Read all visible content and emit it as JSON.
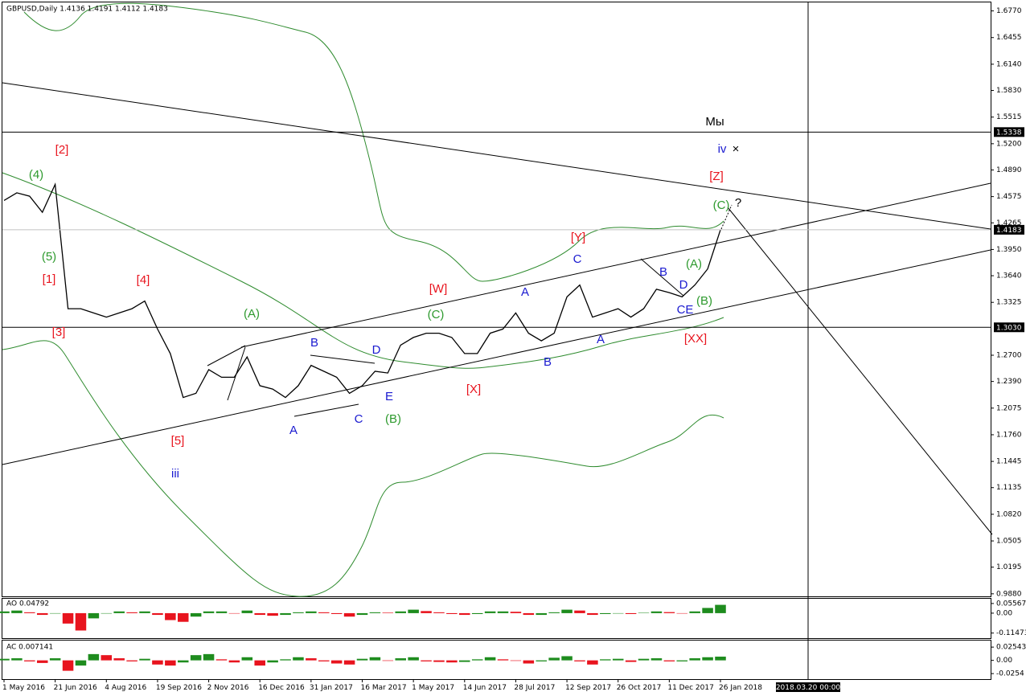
{
  "chart_data": [
    {
      "type": "line",
      "title": "GBPUSD,Daily  1.4136 1.4191 1.4112 1.4183",
      "color": "#000000",
      "categories": [
        "1 May 2016",
        null,
        null,
        null,
        "21 Jun 2016",
        null,
        null,
        null,
        "4 Aug 2016",
        null,
        null,
        null,
        "19 Sep 2016",
        null,
        null,
        null,
        "2 Nov 2016",
        null,
        null,
        null,
        "16 Dec 2016",
        null,
        null,
        null,
        "31 Jan 2017",
        null,
        null,
        null,
        "16 Mar 2017",
        null,
        null,
        null,
        "1 May 2017",
        null,
        null,
        null,
        "14 Jun 2017",
        null,
        null,
        null,
        "28 Jul 2017",
        null,
        null,
        null,
        "12 Sep 2017",
        null,
        null,
        null,
        "26 Oct 2017",
        null,
        null,
        null,
        "11 Dec 2017",
        null,
        null,
        null,
        "26 Jan 2018"
      ],
      "values": [
        1.453,
        1.462,
        1.458,
        1.439,
        1.472,
        1.325,
        1.325,
        1.32,
        1.315,
        1.32,
        1.325,
        1.334,
        1.301,
        1.272,
        1.22,
        1.225,
        1.253,
        1.244,
        1.244,
        1.268,
        1.234,
        1.23,
        1.22,
        1.234,
        1.258,
        1.251,
        1.244,
        1.225,
        1.234,
        1.251,
        1.249,
        1.282,
        1.291,
        1.296,
        1.296,
        1.291,
        1.272,
        1.272,
        1.296,
        1.301,
        1.32,
        1.296,
        1.287,
        1.296,
        1.339,
        1.353,
        1.315,
        1.32,
        1.325,
        1.315,
        1.325,
        1.348,
        1.344,
        1.339,
        1.353,
        1.372,
        1.4183
      ],
      "ylim": [
        0.985,
        1.688
      ],
      "yticks": [
        {
          "value": 1.677,
          "label": "1.6770"
        },
        1.6455,
        {
          "value": 1.614,
          "label": "1.6140"
        },
        {
          "value": 1.583,
          "label": "1.5830"
        },
        1.5515,
        {
          "value": 1.52,
          "label": "1.5200"
        },
        {
          "value": 1.489,
          "label": "1.4890"
        },
        1.4575,
        1.4265,
        {
          "value": 1.395,
          "label": "1.3950"
        },
        {
          "value": 1.364,
          "label": "1.3640"
        },
        1.3325,
        {
          "value": 1.27,
          "label": "1.2700"
        },
        {
          "value": 1.239,
          "label": "1.2390"
        },
        1.2075,
        {
          "value": 1.176,
          "label": "1.1760"
        },
        1.1445,
        1.1135,
        {
          "value": 1.082,
          "label": "1.0820"
        },
        1.0505,
        1.0195,
        {
          "value": 0.988,
          "label": "0.9880"
        }
      ],
      "levels": [
        {
          "value": 1.5338,
          "label": "1.5338",
          "color": "#000000"
        },
        {
          "value": 1.4183,
          "label": "1.4183",
          "color": "#c0c0c0"
        },
        {
          "value": 1.303,
          "label": "1.3030",
          "color": "#000000"
        }
      ],
      "cursor_label": "2018.03.20 00:00",
      "annotations": [
        {
          "text": "[2]",
          "color": "#e8141e"
        },
        {
          "text": "(4)",
          "color": "#2e9a2e"
        },
        {
          "text": "(5)",
          "color": "#2e9a2e"
        },
        {
          "text": "[1]",
          "color": "#e8141e"
        },
        {
          "text": "[3]",
          "color": "#e8141e"
        },
        {
          "text": "[4]",
          "color": "#e8141e"
        },
        {
          "text": "[5]",
          "color": "#e8141e"
        },
        {
          "text": "iii",
          "color": "#1a1ad0"
        },
        {
          "text": "(A)",
          "color": "#2e9a2e"
        },
        {
          "text": "B",
          "color": "#1a1ad0"
        },
        {
          "text": "D",
          "color": "#1a1ad0"
        },
        {
          "text": "A",
          "color": "#1a1ad0"
        },
        {
          "text": "C",
          "color": "#1a1ad0"
        },
        {
          "text": "E",
          "color": "#1a1ad0"
        },
        {
          "text": "(B)",
          "color": "#2e9a2e"
        },
        {
          "text": "[W]",
          "color": "#e8141e"
        },
        {
          "text": "(C)",
          "color": "#2e9a2e"
        },
        {
          "text": "[X]",
          "color": "#e8141e"
        },
        {
          "text": "A",
          "color": "#1a1ad0"
        },
        {
          "text": "B",
          "color": "#1a1ad0"
        },
        {
          "text": "C",
          "color": "#1a1ad0"
        },
        {
          "text": "[Y]",
          "color": "#e8141e"
        },
        {
          "text": "A",
          "color": "#1a1ad0"
        },
        {
          "text": "B",
          "color": "#1a1ad0"
        },
        {
          "text": "(A)",
          "color": "#2e9a2e"
        },
        {
          "text": "D",
          "color": "#1a1ad0"
        },
        {
          "text": "CE",
          "color": "#1a1ad0"
        },
        {
          "text": "(B)",
          "color": "#2e9a2e"
        },
        {
          "text": "[XX]",
          "color": "#e8141e"
        },
        {
          "text": "(C)",
          "color": "#2e9a2e"
        },
        {
          "text": "?",
          "color": "#000000"
        },
        {
          "text": "[Z]",
          "color": "#e8141e"
        },
        {
          "text": "iv",
          "color": "#1a1ad0"
        },
        {
          "text": "×",
          "color": "#000000"
        },
        {
          "text": "Мы",
          "color": "#000000"
        }
      ]
    },
    {
      "type": "bar",
      "title": "AO 0.04792",
      "up_color": "#1e8c1e",
      "down_color": "#e8141e",
      "values": [
        0.01,
        0.015,
        0.005,
        -0.01,
        0.0,
        -0.06,
        -0.1,
        -0.03,
        0.0,
        0.01,
        0.005,
        0.01,
        -0.01,
        -0.04,
        -0.05,
        -0.02,
        0.01,
        0.01,
        0.0,
        0.015,
        -0.01,
        -0.015,
        -0.01,
        0.005,
        0.01,
        0.005,
        -0.005,
        -0.02,
        -0.01,
        0.005,
        0.003,
        0.01,
        0.02,
        0.012,
        0.005,
        -0.005,
        -0.01,
        -0.005,
        0.01,
        0.01,
        0.008,
        -0.01,
        -0.01,
        0.005,
        0.02,
        0.015,
        -0.01,
        -0.005,
        0.0,
        -0.005,
        0.002,
        0.01,
        0.006,
        0.0,
        0.01,
        0.03,
        0.04792
      ],
      "ylim": [
        -0.144,
        0.083
      ],
      "yticks": [
        0.05567,
        {
          "value": 0,
          "label": "0.00"
        },
        -0.11473
      ]
    },
    {
      "type": "bar",
      "title": "AC 0.007141",
      "up_color": "#1e8c1e",
      "down_color": "#e8141e",
      "values": [
        0.003,
        0.004,
        -0.002,
        -0.005,
        0.004,
        -0.02,
        -0.01,
        0.012,
        0.01,
        0.004,
        -0.002,
        0.003,
        -0.008,
        -0.01,
        -0.004,
        0.01,
        0.012,
        0.002,
        -0.004,
        0.006,
        -0.01,
        -0.004,
        0.002,
        0.006,
        0.004,
        -0.002,
        -0.006,
        -0.008,
        0.003,
        0.006,
        -0.001,
        0.004,
        0.006,
        -0.002,
        -0.003,
        -0.004,
        -0.003,
        0.002,
        0.006,
        0.002,
        -0.001,
        -0.006,
        -0.002,
        0.005,
        0.008,
        -0.002,
        -0.008,
        0.002,
        0.003,
        -0.003,
        0.003,
        0.004,
        -0.002,
        -0.002,
        0.004,
        0.006,
        0.007141
      ],
      "ylim": [
        -0.036,
        0.038
      ],
      "yticks": [
        0.02543,
        {
          "value": 0,
          "label": "0.00"
        },
        -0.0254
      ]
    }
  ]
}
